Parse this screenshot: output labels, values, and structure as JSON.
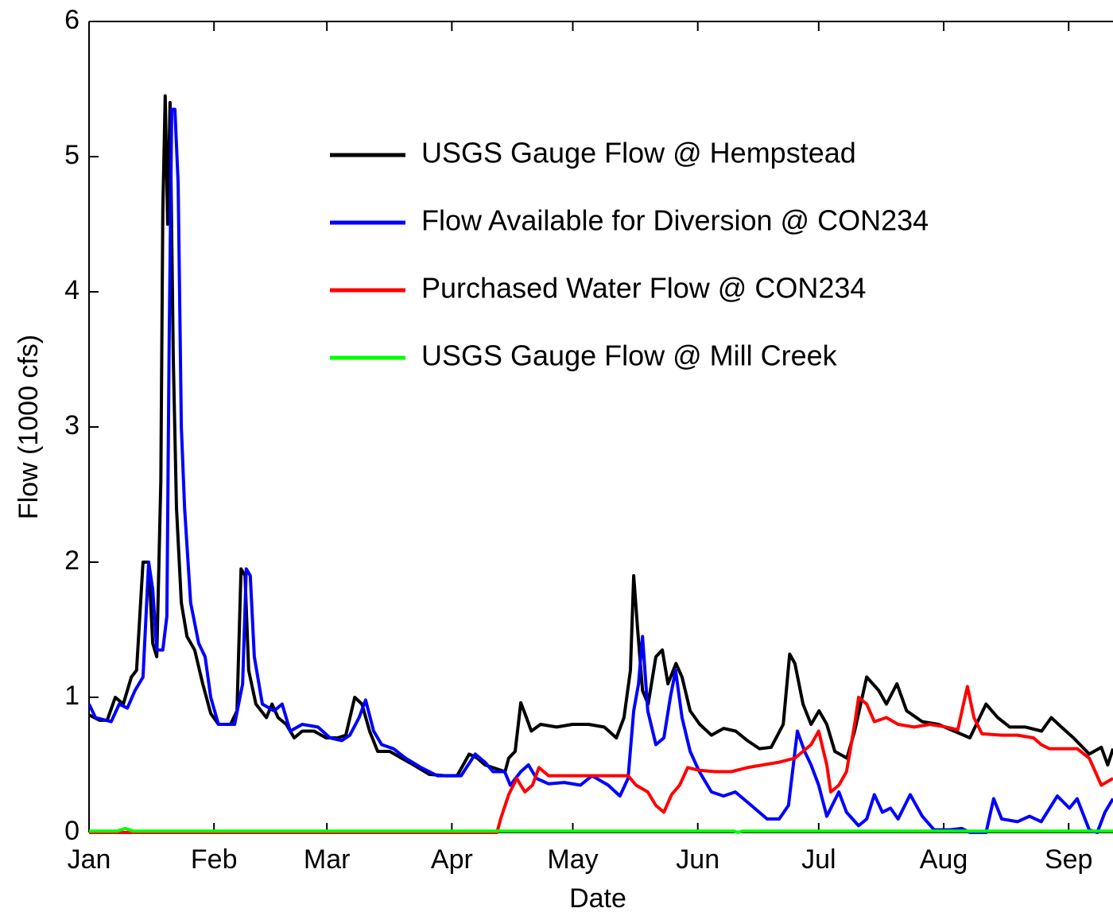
{
  "chart_data": {
    "type": "line",
    "xlabel": "Date",
    "ylabel": "Flow (1000 cfs)",
    "xlim": [
      0,
      254
    ],
    "xticks": [
      {
        "value": 0,
        "label": "Jan"
      },
      {
        "value": 31,
        "label": "Feb"
      },
      {
        "value": 59,
        "label": "Mar"
      },
      {
        "value": 90,
        "label": "Apr"
      },
      {
        "value": 120,
        "label": "May"
      },
      {
        "value": 151,
        "label": "Jun"
      },
      {
        "value": 181,
        "label": "Jul"
      },
      {
        "value": 212,
        "label": "Aug"
      },
      {
        "value": 243,
        "label": "Sep"
      }
    ],
    "ylim": [
      0,
      6
    ],
    "yticks": [
      0,
      1,
      2,
      3,
      4,
      5,
      6
    ],
    "grid": false,
    "legend": "upper center",
    "series": [
      {
        "name": "USGS Gauge Flow @ Hempstead",
        "color": "#000000",
        "x": [
          0,
          2.6,
          4.5,
          6.5,
          8.5,
          10.5,
          11.8,
          13.4,
          14.8,
          15.8,
          16.8,
          17.8,
          18.3,
          18.9,
          19.5,
          20.1,
          20.9,
          21.7,
          22.9,
          24.3,
          26.2,
          28.2,
          30.2,
          32.1,
          35.1,
          36.7,
          37.7,
          38.7,
          39.6,
          41.4,
          44,
          45.4,
          46.9,
          48.9,
          50.9,
          52.9,
          55.8,
          58.8,
          61.7,
          63.7,
          65.9,
          67.7,
          69.6,
          71.6,
          74.6,
          77.5,
          80.5,
          84.4,
          88.4,
          91.3,
          94.3,
          96.3,
          98.2,
          101.2,
          103.2,
          104.1,
          105.7,
          107.1,
          108.5,
          109.7,
          112,
          116,
          119.9,
          123.9,
          127.8,
          130.8,
          132.7,
          134.3,
          135.1,
          136.1,
          137.3,
          138.7,
          140.6,
          142.2,
          143.6,
          145.6,
          147.1,
          149.1,
          151.5,
          154.4,
          157.4,
          160.4,
          163.3,
          166.3,
          169.2,
          172.2,
          173.8,
          175.1,
          177.1,
          179.1,
          181.1,
          183,
          185,
          188,
          189.9,
          192.9,
          195.9,
          197.8,
          200.4,
          202.8,
          206.7,
          210.7,
          214.6,
          218.5,
          222.5,
          225.4,
          228.4,
          232.3,
          236.3,
          238.7,
          241.2,
          244.2,
          248.1,
          251.1,
          252.7,
          254
        ],
        "values": [
          0.87,
          0.83,
          0.83,
          1.0,
          0.95,
          1.15,
          1.2,
          2.0,
          2.0,
          1.4,
          1.3,
          2.6,
          4.6,
          5.45,
          4.5,
          5.4,
          3.5,
          2.4,
          1.7,
          1.45,
          1.35,
          1.1,
          0.88,
          0.8,
          0.8,
          0.9,
          1.95,
          1.9,
          1.2,
          0.95,
          0.85,
          0.95,
          0.85,
          0.8,
          0.7,
          0.75,
          0.75,
          0.7,
          0.7,
          0.72,
          1.0,
          0.95,
          0.75,
          0.6,
          0.6,
          0.55,
          0.5,
          0.43,
          0.42,
          0.42,
          0.58,
          0.55,
          0.5,
          0.47,
          0.45,
          0.55,
          0.6,
          0.96,
          0.85,
          0.75,
          0.8,
          0.78,
          0.8,
          0.8,
          0.78,
          0.7,
          0.85,
          1.2,
          1.9,
          1.5,
          1.05,
          0.95,
          1.3,
          1.35,
          1.1,
          1.25,
          1.15,
          0.9,
          0.8,
          0.72,
          0.77,
          0.75,
          0.68,
          0.62,
          0.63,
          0.8,
          1.32,
          1.25,
          0.95,
          0.8,
          0.9,
          0.8,
          0.6,
          0.55,
          0.75,
          1.15,
          1.05,
          0.95,
          1.1,
          0.9,
          0.82,
          0.8,
          0.75,
          0.7,
          0.95,
          0.85,
          0.78,
          0.78,
          0.75,
          0.85,
          0.78,
          0.7,
          0.58,
          0.63,
          0.5,
          0.62
        ]
      },
      {
        "name": "Flow Available for Diversion @ CON234",
        "color": "#0000ff",
        "x": [
          0,
          1.6,
          5.5,
          7.5,
          9.5,
          11.4,
          13.4,
          14.8,
          15.8,
          16.8,
          18.3,
          19.3,
          19.9,
          20.5,
          21.3,
          22.1,
          22.9,
          23.7,
          25.2,
          27.2,
          28.8,
          30.2,
          32.1,
          36.1,
          38.1,
          39,
          40,
          41,
          43,
          45.9,
          47.9,
          49.9,
          52.9,
          56.8,
          59.8,
          62.7,
          64.7,
          67,
          68.6,
          70.6,
          72.6,
          75.5,
          78.5,
          82.4,
          86.4,
          92.3,
          95.8,
          98.2,
          100.2,
          103.1,
          104.5,
          107.1,
          109,
          111,
          114,
          117.9,
          121.9,
          124.8,
          128.8,
          131.7,
          133.7,
          135.1,
          136.3,
          137.3,
          138.6,
          140.6,
          142.6,
          144.2,
          145.5,
          147.1,
          149.1,
          151.4,
          154.4,
          157.4,
          160.3,
          164.3,
          168.2,
          171.2,
          173.5,
          175.7,
          177.5,
          179.1,
          181,
          183,
          186,
          187.9,
          190.9,
          192.9,
          194.8,
          196.8,
          198.8,
          200.7,
          203.7,
          206.7,
          209.6,
          213.6,
          216.5,
          218.5,
          222.5,
          224.4,
          226.4,
          230.3,
          233.3,
          236.2,
          240.2,
          243.2,
          245.1,
          248.1,
          250.1,
          252,
          254
        ],
        "values": [
          0.95,
          0.85,
          0.82,
          0.95,
          0.92,
          1.05,
          1.15,
          2.0,
          1.8,
          1.35,
          1.35,
          1.6,
          3.7,
          5.35,
          5.35,
          4.8,
          3.0,
          2.4,
          1.7,
          1.4,
          1.3,
          1.0,
          0.8,
          0.8,
          1.1,
          1.95,
          1.9,
          1.3,
          0.95,
          0.9,
          0.95,
          0.75,
          0.8,
          0.78,
          0.7,
          0.68,
          0.72,
          0.85,
          0.98,
          0.75,
          0.65,
          0.62,
          0.55,
          0.48,
          0.42,
          0.42,
          0.58,
          0.52,
          0.45,
          0.45,
          0.35,
          0.45,
          0.5,
          0.4,
          0.36,
          0.37,
          0.35,
          0.42,
          0.35,
          0.27,
          0.4,
          0.9,
          1.1,
          1.45,
          0.9,
          0.65,
          0.7,
          1.0,
          1.2,
          0.85,
          0.6,
          0.45,
          0.3,
          0.27,
          0.3,
          0.2,
          0.1,
          0.1,
          0.2,
          0.75,
          0.6,
          0.5,
          0.35,
          0.12,
          0.3,
          0.15,
          0.05,
          0.1,
          0.28,
          0.15,
          0.18,
          0.1,
          0.28,
          0.12,
          0.02,
          0.02,
          0.03,
          0,
          0,
          0.25,
          0.1,
          0.08,
          0.12,
          0.08,
          0.27,
          0.18,
          0.25,
          0.02,
          0,
          0.15,
          0.25
        ]
      },
      {
        "name": "Purchased Water Flow @ CON234",
        "color": "#ff0000",
        "x": [
          0,
          101.2,
          102.1,
          104.1,
          106.1,
          108.1,
          110,
          111.6,
          114,
          119.9,
          133.7,
          135.7,
          138.6,
          140.6,
          142.6,
          144.5,
          146.5,
          148.5,
          151.4,
          155.4,
          159.3,
          163.3,
          167.2,
          171.2,
          175.1,
          177.1,
          179.1,
          181,
          183,
          184,
          186,
          187.9,
          189.9,
          190.9,
          192.9,
          194.8,
          197.8,
          200.7,
          204.7,
          208.6,
          212.6,
          215.5,
          216.9,
          217.9,
          219.5,
          221.5,
          226.4,
          230.3,
          234.3,
          236.2,
          238.2,
          245.1,
          248.1,
          251.1,
          254
        ],
        "values": [
          0,
          0,
          0.1,
          0.28,
          0.4,
          0.3,
          0.35,
          0.48,
          0.42,
          0.42,
          0.42,
          0.35,
          0.3,
          0.2,
          0.15,
          0.28,
          0.35,
          0.48,
          0.46,
          0.45,
          0.45,
          0.48,
          0.5,
          0.52,
          0.55,
          0.6,
          0.65,
          0.75,
          0.5,
          0.3,
          0.35,
          0.45,
          0.8,
          1.0,
          0.95,
          0.82,
          0.85,
          0.8,
          0.78,
          0.8,
          0.78,
          0.76,
          0.95,
          1.08,
          0.85,
          0.73,
          0.72,
          0.72,
          0.7,
          0.65,
          0.62,
          0.62,
          0.55,
          0.35,
          0.4
        ]
      },
      {
        "name": "USGS Gauge Flow @ Mill Creek",
        "color": "#00ff00",
        "x": [
          0,
          7,
          9,
          11,
          100,
          160,
          161,
          162,
          200,
          254
        ],
        "values": [
          0.01,
          0.01,
          0.03,
          0.01,
          0.01,
          0.01,
          0,
          0.01,
          0.01,
          0.01
        ]
      }
    ]
  }
}
